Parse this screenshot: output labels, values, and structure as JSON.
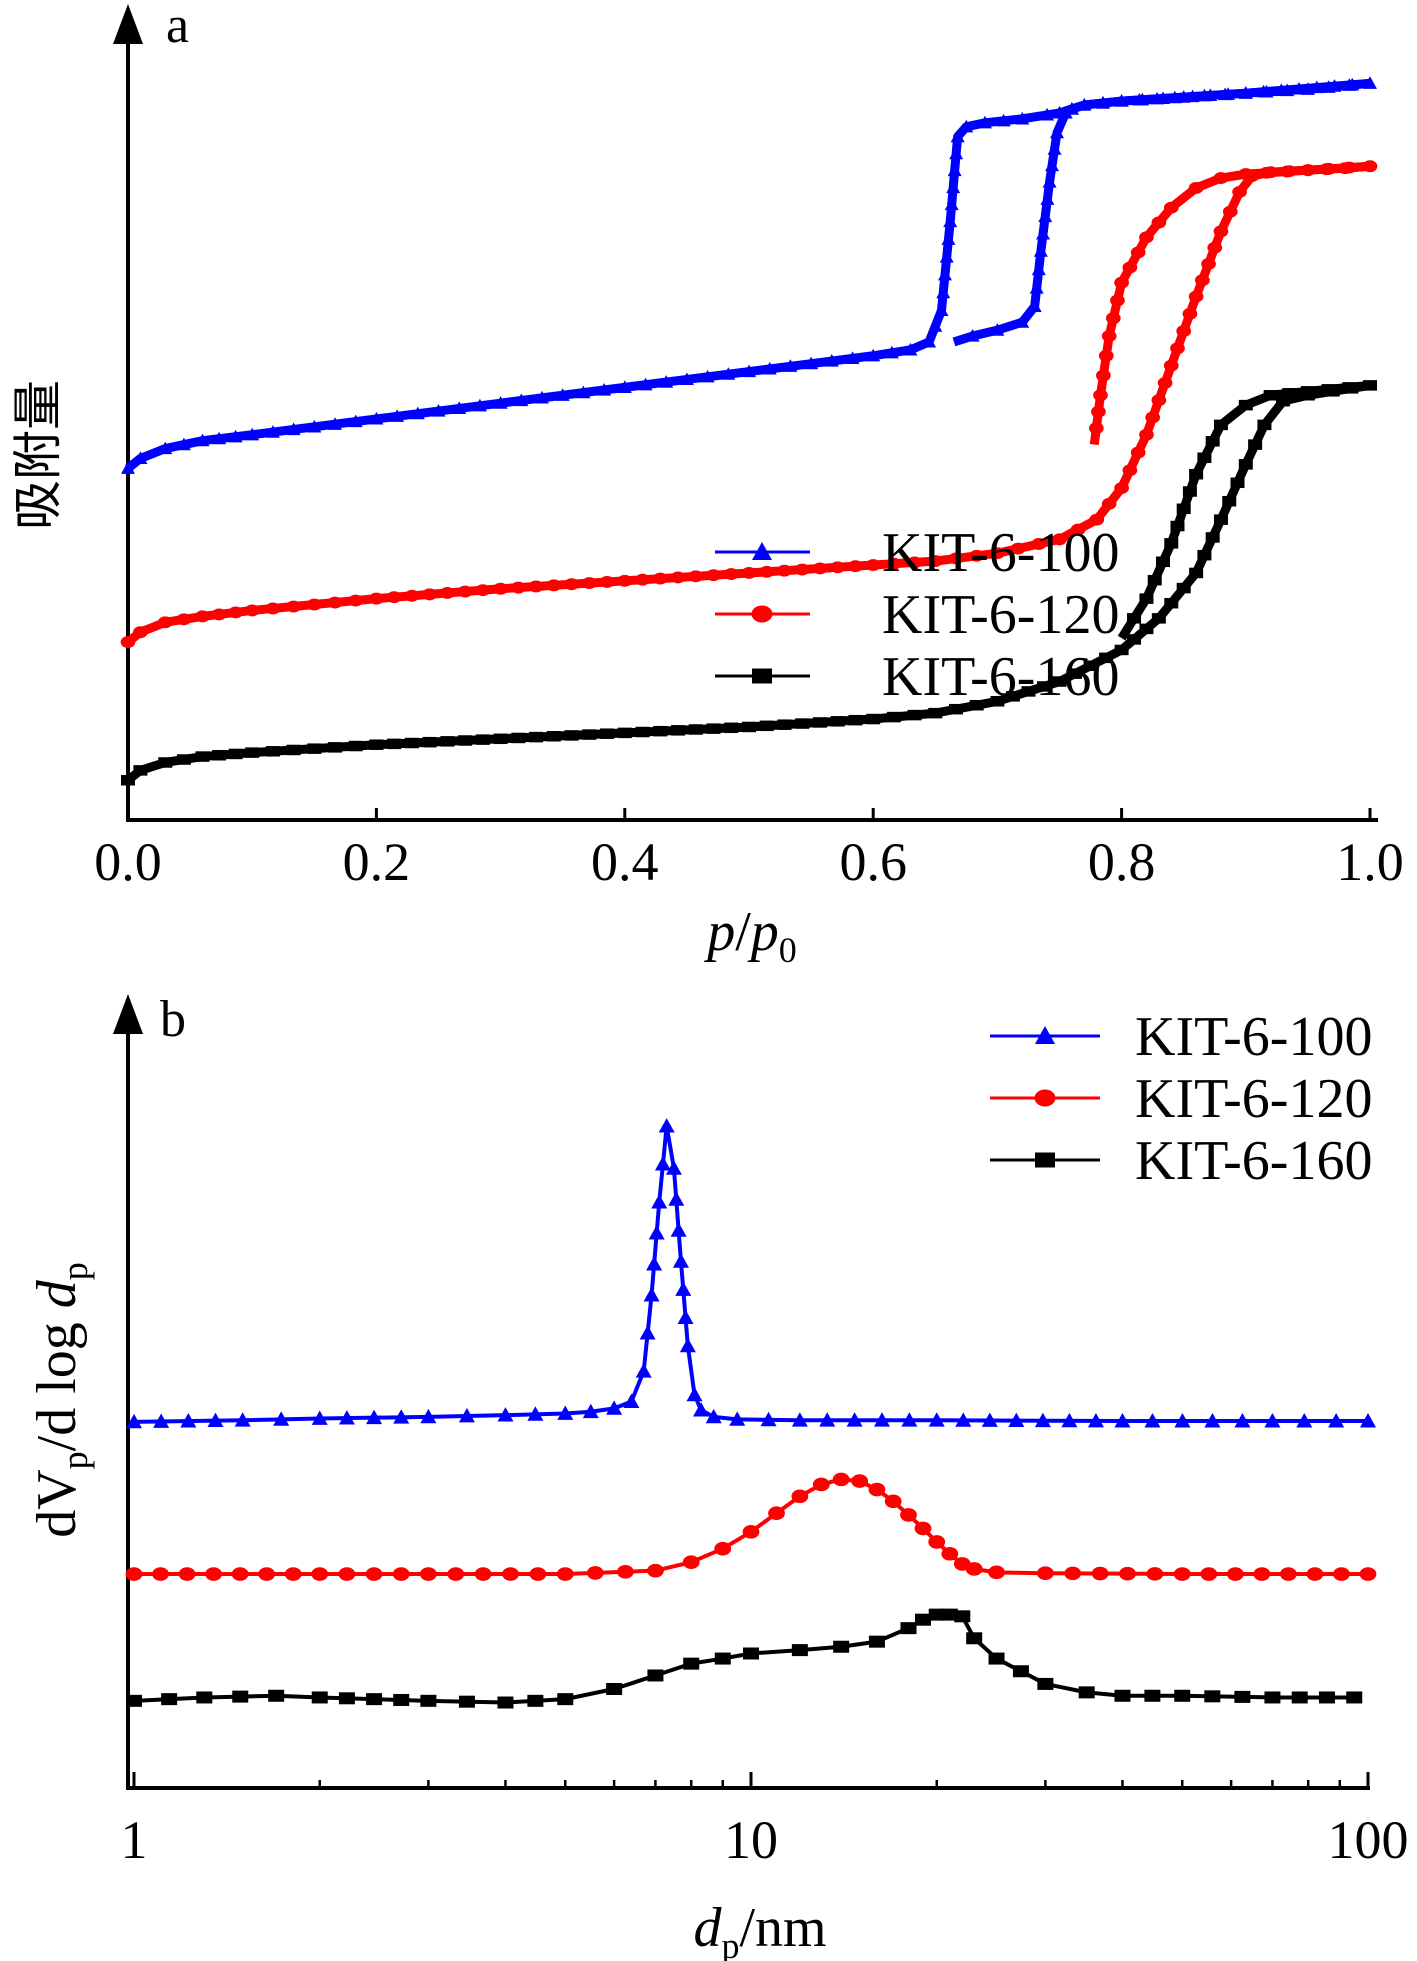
{
  "chart_data": [
    {
      "panel": "a",
      "type": "line",
      "xlabel_parts": [
        "p",
        "/",
        "p",
        "0"
      ],
      "ylabel": "吸附量",
      "xlim": [
        0,
        1.0
      ],
      "x_ticks": [
        "0.0",
        "0.2",
        "0.4",
        "0.6",
        "0.8",
        "1.0"
      ],
      "y_ticks": [],
      "legend_position": "lower-right",
      "grid": false,
      "series": [
        {
          "name": "KIT-6-100",
          "color": "#0000ff",
          "marker": "triangle",
          "x": [
            0.0,
            0.01,
            0.03,
            0.06,
            0.1,
            0.15,
            0.2,
            0.25,
            0.3,
            0.35,
            0.4,
            0.45,
            0.5,
            0.55,
            0.6,
            0.63,
            0.645,
            0.655,
            0.662,
            0.668,
            0.675,
            0.69,
            0.72,
            0.74,
            0.75,
            0.76,
            0.77,
            0.8,
            0.85,
            0.9,
            0.95,
            1.0
          ],
          "y": [
            0.0,
            0.05,
            0.1,
            0.14,
            0.17,
            0.21,
            0.25,
            0.29,
            0.33,
            0.37,
            0.41,
            0.45,
            0.49,
            0.53,
            0.57,
            0.6,
            0.64,
            0.8,
            1.25,
            1.68,
            1.73,
            1.75,
            1.77,
            1.79,
            1.8,
            1.82,
            1.84,
            1.86,
            1.88,
            1.9,
            1.92,
            1.95
          ],
          "desorption_x": [
            1.0,
            0.9,
            0.8,
            0.77,
            0.76,
            0.755,
            0.748,
            0.742,
            0.735,
            0.73,
            0.72,
            0.7,
            0.68,
            0.665
          ],
          "desorption_y": [
            1.95,
            1.9,
            1.86,
            1.84,
            1.82,
            1.8,
            1.7,
            1.45,
            1.1,
            0.82,
            0.74,
            0.7,
            0.67,
            0.64
          ]
        },
        {
          "name": "KIT-6-120",
          "color": "#ff0000",
          "marker": "circle",
          "x": [
            0.0,
            0.01,
            0.03,
            0.06,
            0.1,
            0.15,
            0.2,
            0.3,
            0.4,
            0.5,
            0.6,
            0.65,
            0.7,
            0.75,
            0.78,
            0.8,
            0.82,
            0.84,
            0.86,
            0.88,
            0.895,
            0.905,
            0.92,
            0.95,
            0.98,
            1.0
          ],
          "y": [
            0.0,
            0.05,
            0.1,
            0.13,
            0.16,
            0.19,
            0.22,
            0.27,
            0.31,
            0.35,
            0.39,
            0.41,
            0.45,
            0.52,
            0.62,
            0.78,
            1.05,
            1.4,
            1.75,
            2.08,
            2.28,
            2.36,
            2.38,
            2.39,
            2.4,
            2.41
          ],
          "desorption_x": [
            1.0,
            0.95,
            0.9,
            0.88,
            0.86,
            0.84,
            0.82,
            0.8,
            0.79,
            0.783,
            0.778
          ],
          "desorption_y": [
            2.41,
            2.39,
            2.37,
            2.35,
            2.3,
            2.2,
            2.05,
            1.82,
            1.55,
            1.25,
            1.0
          ]
        },
        {
          "name": "KIT-6-160",
          "color": "#000000",
          "marker": "square",
          "x": [
            0.0,
            0.01,
            0.03,
            0.06,
            0.1,
            0.15,
            0.2,
            0.3,
            0.4,
            0.5,
            0.6,
            0.65,
            0.7,
            0.75,
            0.8,
            0.83,
            0.86,
            0.88,
            0.9,
            0.915,
            0.93,
            0.95,
            0.97,
            1.0
          ],
          "y": [
            0.0,
            0.05,
            0.09,
            0.12,
            0.14,
            0.16,
            0.18,
            0.21,
            0.24,
            0.27,
            0.31,
            0.34,
            0.4,
            0.5,
            0.66,
            0.82,
            1.05,
            1.32,
            1.6,
            1.8,
            1.92,
            1.95,
            1.97,
            2.0
          ],
          "desorption_x": [
            1.0,
            0.95,
            0.92,
            0.9,
            0.88,
            0.86,
            0.84,
            0.82,
            0.8
          ],
          "desorption_y": [
            2.0,
            1.97,
            1.95,
            1.9,
            1.8,
            1.55,
            1.2,
            0.92,
            0.72
          ]
        }
      ],
      "offsets": [
        1.58,
        0.7,
        0.0
      ],
      "ylim": [
        -0.1,
        3.8
      ]
    },
    {
      "panel": "b",
      "type": "line",
      "xscale": "log",
      "xlabel_parts": [
        "d",
        "p",
        "/nm"
      ],
      "ylabel_parts": [
        "dV",
        "p",
        "/d log ",
        "d",
        "p"
      ],
      "xlim": [
        1,
        100
      ],
      "x_ticks": [
        "1",
        "10",
        "100"
      ],
      "y_ticks": [],
      "legend_position": "top-right",
      "grid": false,
      "series": [
        {
          "name": "KIT-6-100",
          "color": "#0000ff",
          "marker": "triangle",
          "x": [
            1.0,
            1.5,
            2,
            3,
            4,
            5,
            5.5,
            6,
            6.4,
            6.7,
            6.9,
            7.1,
            7.3,
            7.5,
            7.7,
            7.9,
            8.1,
            8.3,
            8.7,
            9.5,
            12,
            20,
            40,
            70,
            100
          ],
          "y": [
            0.0,
            0.01,
            0.02,
            0.03,
            0.04,
            0.05,
            0.06,
            0.08,
            0.12,
            0.3,
            0.75,
            1.3,
            1.75,
            1.5,
            0.95,
            0.45,
            0.16,
            0.07,
            0.03,
            0.015,
            0.01,
            0.01,
            0.005,
            0.005,
            0.005
          ]
        },
        {
          "name": "KIT-6-120",
          "color": "#ff0000",
          "marker": "circle",
          "x": [
            1.0,
            2,
            3,
            5,
            7,
            8,
            9,
            10,
            11,
            12,
            13,
            14,
            15,
            16,
            17,
            18,
            19,
            20,
            21,
            22,
            23,
            25,
            30,
            50,
            100
          ],
          "y": [
            0.0,
            0.0,
            0.0,
            0.0,
            0.02,
            0.07,
            0.15,
            0.25,
            0.36,
            0.46,
            0.53,
            0.56,
            0.55,
            0.5,
            0.43,
            0.35,
            0.27,
            0.19,
            0.12,
            0.06,
            0.03,
            0.01,
            0.005,
            0.0,
            0.0
          ]
        },
        {
          "name": "KIT-6-160",
          "color": "#000000",
          "marker": "square",
          "x": [
            1.0,
            1.3,
            1.7,
            2,
            3,
            4,
            5,
            6,
            7,
            8,
            9,
            10,
            12,
            14,
            16,
            18,
            19,
            20,
            21,
            22,
            23,
            25,
            30,
            35,
            40,
            50,
            70,
            95
          ],
          "y": [
            0.05,
            0.07,
            0.08,
            0.07,
            0.05,
            0.04,
            0.06,
            0.12,
            0.2,
            0.27,
            0.3,
            0.33,
            0.35,
            0.37,
            0.4,
            0.48,
            0.53,
            0.56,
            0.56,
            0.55,
            0.42,
            0.3,
            0.15,
            0.1,
            0.08,
            0.08,
            0.07,
            0.07
          ]
        }
      ],
      "offsets": [
        1.7,
        0.8,
        0.0
      ],
      "ylim": [
        -0.3,
        3.9
      ]
    }
  ]
}
